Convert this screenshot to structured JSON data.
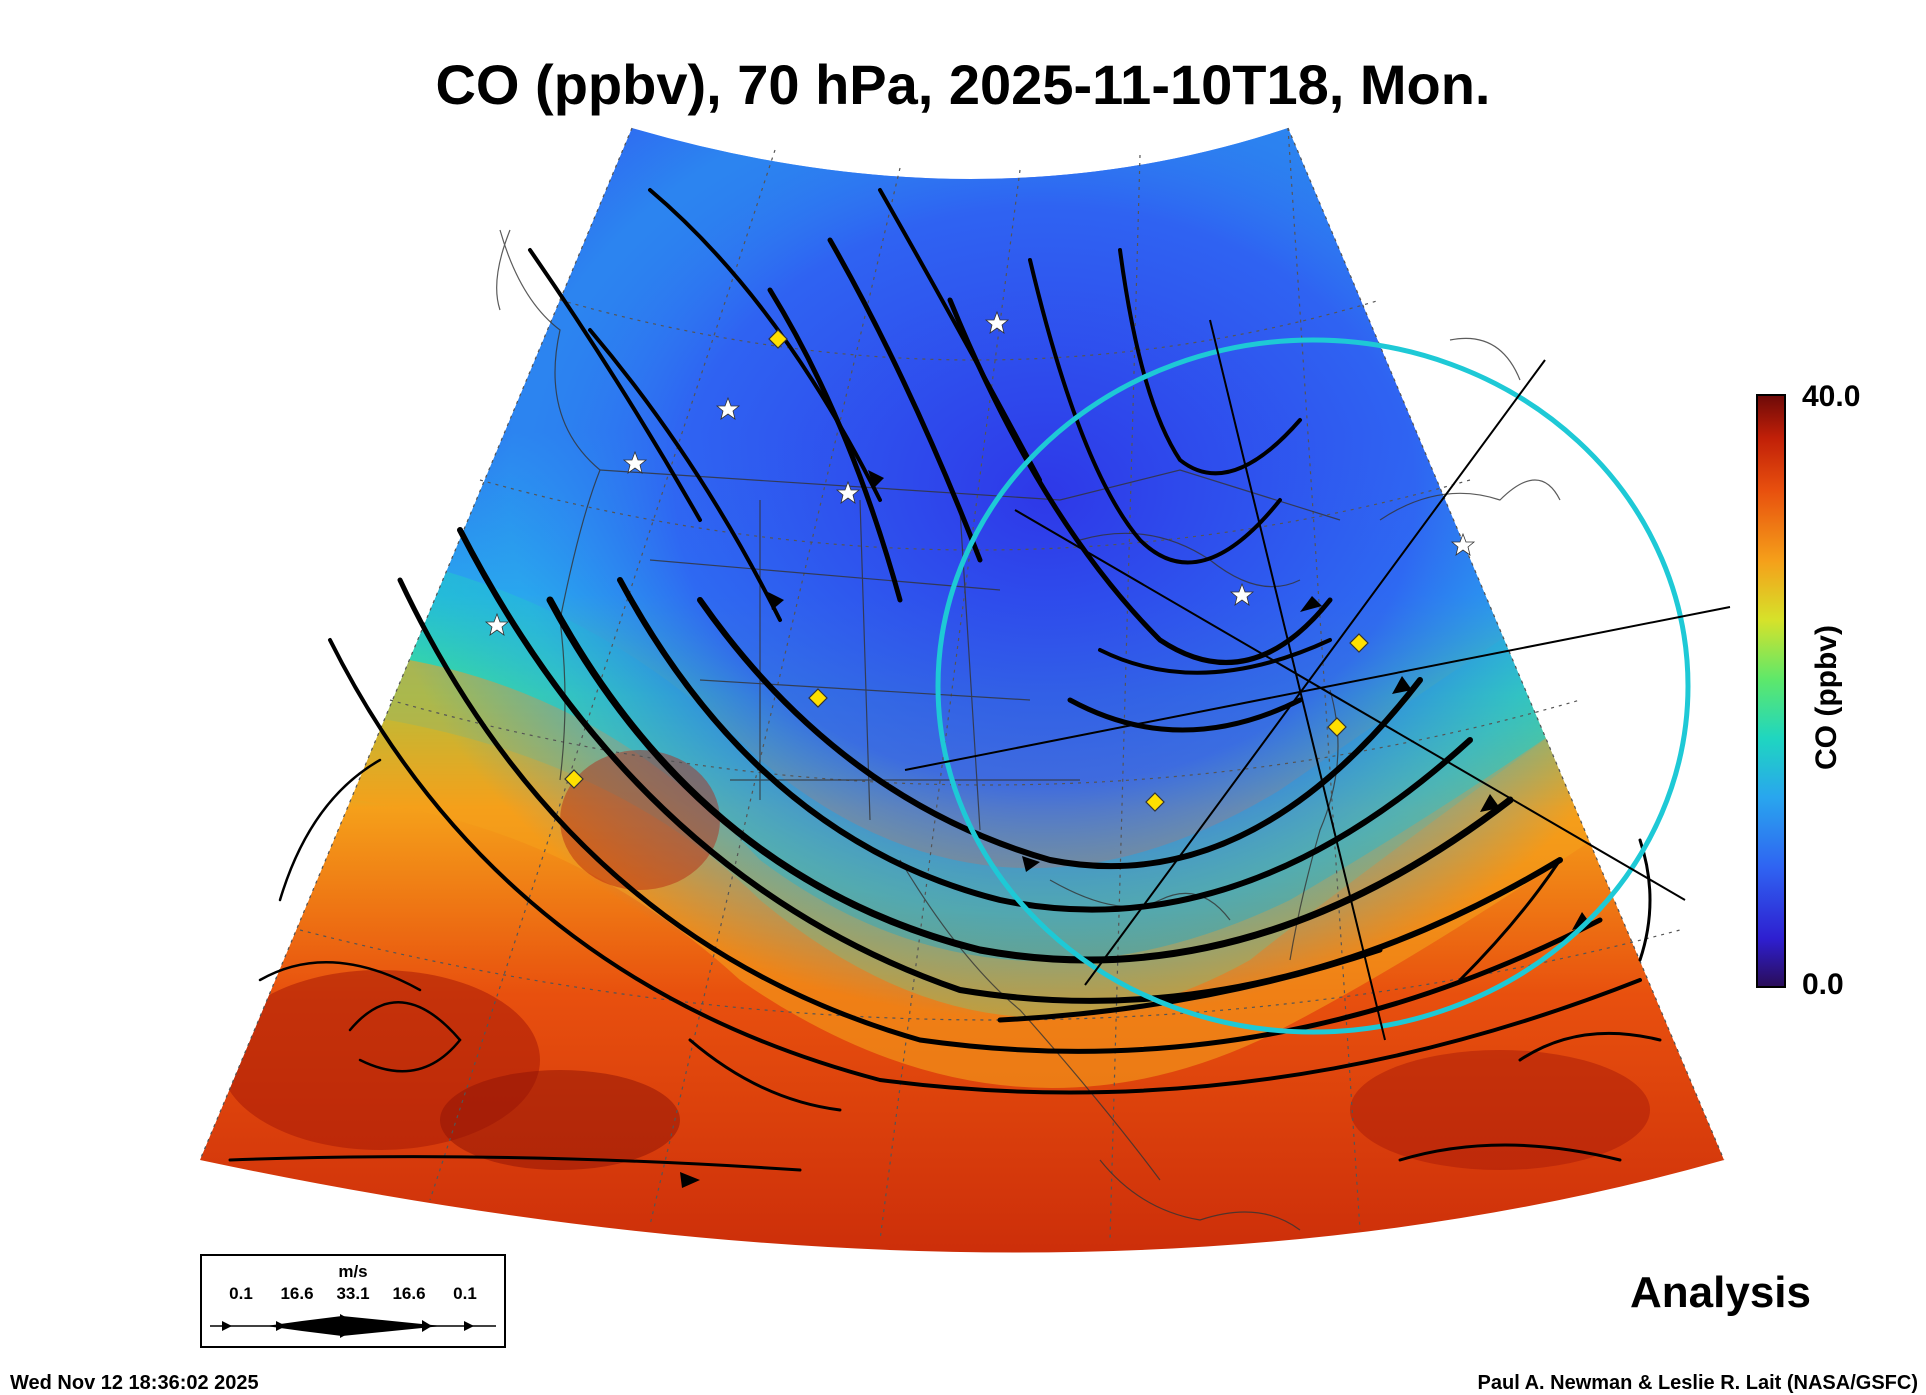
{
  "header": {
    "title": "CO (ppbv), 70 hPa, 2025-11-10T18, Mon."
  },
  "colorbar": {
    "max_label": "40.0",
    "min_label": "0.0",
    "title": "CO (ppbv)",
    "range": [
      0.0,
      40.0
    ],
    "colors": [
      "#2a0d5a",
      "#2e1fd0",
      "#2f63f2",
      "#29a6ee",
      "#1fd6c0",
      "#5ee86a",
      "#d6e22a",
      "#f5a01a",
      "#e8500e",
      "#c01f08",
      "#6e0a08"
    ]
  },
  "analysis_label": "Analysis",
  "footer": {
    "timestamp": "Wed Nov 12 18:36:02 2025",
    "credit": "Paul A. Newman & Leslie R. Lait (NASA/GSFC)"
  },
  "wind_legend": {
    "unit": "m/s",
    "values": [
      "0.1",
      "16.6",
      "33.1",
      "16.6",
      "0.1"
    ]
  },
  "map": {
    "projection": "conic sector over North America",
    "overlays": [
      "streamlines",
      "station-stars",
      "yellow-diamond-markers",
      "cyan-range-ring",
      "radial-lines"
    ],
    "marker_colors": {
      "diamond": "#ffe000",
      "star": "#ffffff",
      "ring": "#1ec9d6"
    }
  }
}
